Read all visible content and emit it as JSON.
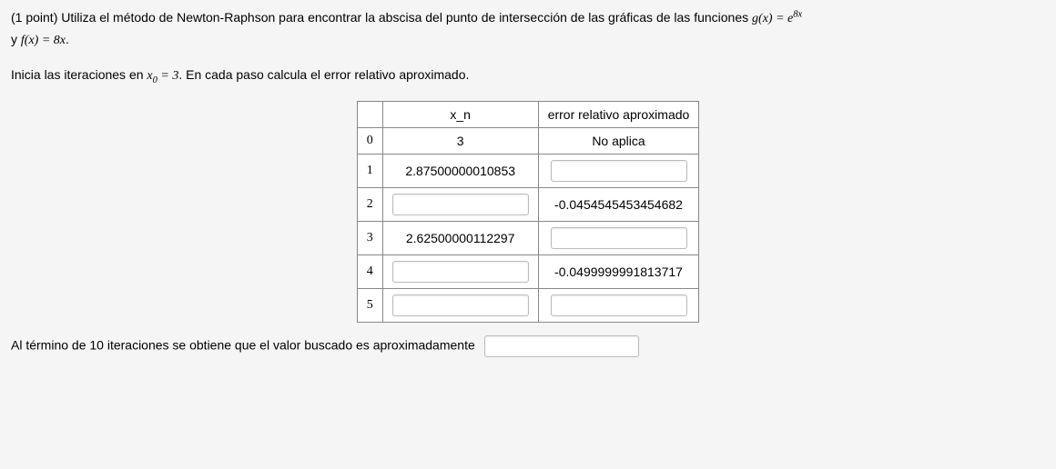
{
  "problem": {
    "points_prefix": "(1 point) ",
    "line1_a": "Utiliza el método de Newton-Raphson para encontrar la abscisa del punto de intersección de las gráficas de las funciones ",
    "g_lhs": "g(x) = e",
    "g_exp": "8x",
    "line2_a": "y ",
    "f_expr": "f(x) = 8x",
    "line2_b": ".",
    "line3_a": "Inicia las iteraciones en ",
    "x0_expr": "x",
    "x0_sub": "0",
    "x0_rhs": " = 3",
    "line3_b": ". En cada paso calcula el error relativo aproximado."
  },
  "table": {
    "headers": {
      "idx": "",
      "xn": "x_n",
      "err": "error relativo aproximado"
    },
    "rows": [
      {
        "idx": "0",
        "xn_text": "3",
        "xn_input": false,
        "err_text": "No aplica",
        "err_input": false
      },
      {
        "idx": "1",
        "xn_text": "2.87500000010853",
        "xn_input": false,
        "err_text": "",
        "err_input": true
      },
      {
        "idx": "2",
        "xn_text": "",
        "xn_input": true,
        "err_text": "-0.0454545453454682",
        "err_input": false
      },
      {
        "idx": "3",
        "xn_text": "2.62500000112297",
        "xn_input": false,
        "err_text": "",
        "err_input": true
      },
      {
        "idx": "4",
        "xn_text": "",
        "xn_input": true,
        "err_text": "-0.0499999991813717",
        "err_input": false
      },
      {
        "idx": "5",
        "xn_text": "",
        "xn_input": true,
        "err_text": "",
        "err_input": true
      }
    ]
  },
  "final": {
    "text": "Al término de 10 iteraciones se obtiene que el valor buscado es aproximadamente"
  }
}
